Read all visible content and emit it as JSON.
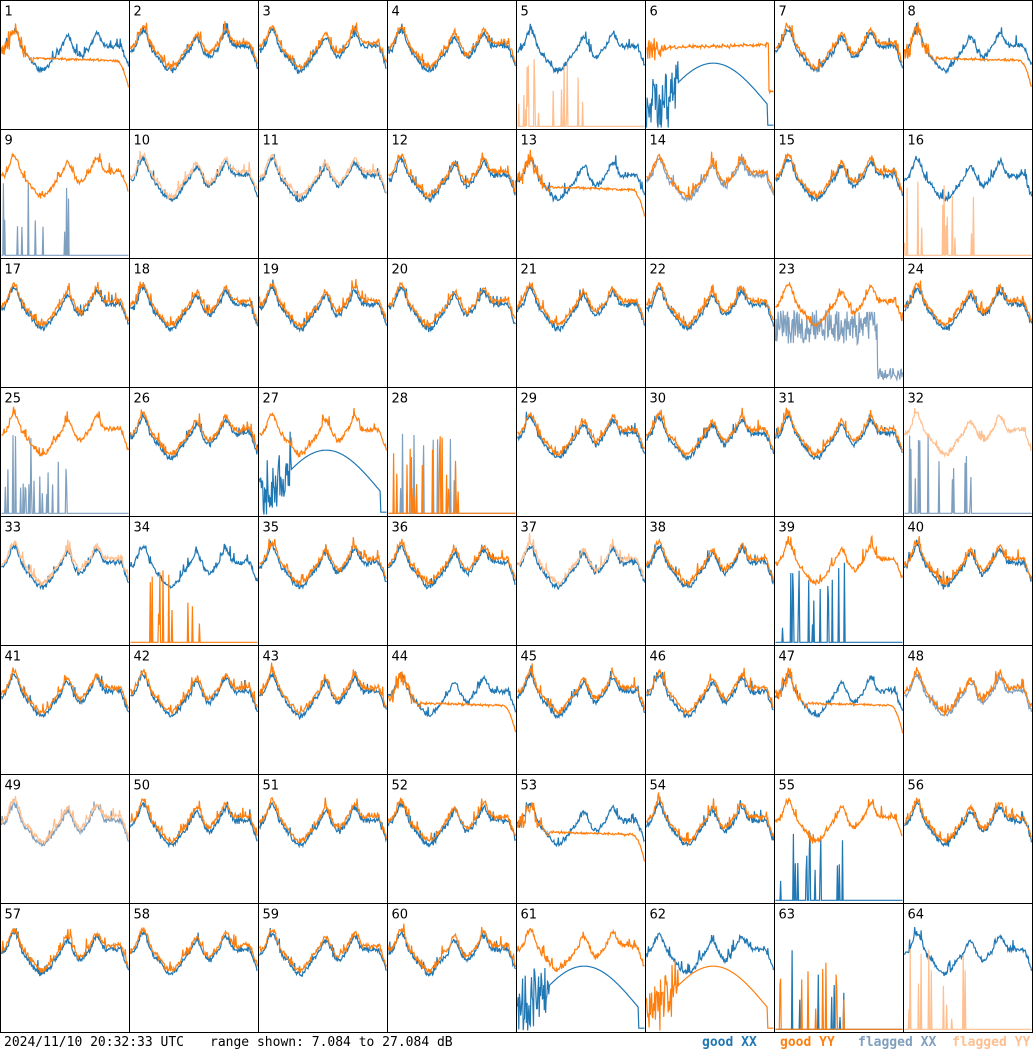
{
  "footer": {
    "timestamp": "2024/11/10 20:32:33 UTC",
    "range": "range shown: 7.084 to 27.084 dB"
  },
  "legend": [
    {
      "id": "good_xx",
      "label": "good XX",
      "color": "#1f77b4"
    },
    {
      "id": "good_yy",
      "label": "good YY",
      "color": "#ff7f0e"
    },
    {
      "id": "flagged_xx",
      "label": "flagged XX",
      "color": "#7f9fbf"
    },
    {
      "id": "flagged_yy",
      "label": "flagged YY",
      "color": "#ffbf8f"
    }
  ],
  "chart_data": {
    "type": "line",
    "layout": "8x8 grid of small multiples",
    "ylim": [
      7.084,
      27.084
    ],
    "yunit": "dB",
    "panels": [
      {
        "n": 1,
        "xx": "good",
        "yy": "good",
        "xx_shape": "normal",
        "yy_shape": "droop"
      },
      {
        "n": 2,
        "xx": "good",
        "yy": "good",
        "xx_shape": "normal",
        "yy_shape": "normal"
      },
      {
        "n": 3,
        "xx": "good",
        "yy": "good",
        "xx_shape": "normal",
        "yy_shape": "normal"
      },
      {
        "n": 4,
        "xx": "good",
        "yy": "good",
        "xx_shape": "normal",
        "yy_shape": "normal"
      },
      {
        "n": 5,
        "xx": "good",
        "yy": "flagged",
        "xx_shape": "normal",
        "yy_shape": "spikes"
      },
      {
        "n": 6,
        "xx": "good",
        "yy": "good",
        "xx_shape": "dome",
        "yy_shape": "flat_high"
      },
      {
        "n": 7,
        "xx": "good",
        "yy": "good",
        "xx_shape": "normal",
        "yy_shape": "normal"
      },
      {
        "n": 8,
        "xx": "good",
        "yy": "good",
        "xx_shape": "normal",
        "yy_shape": "droop"
      },
      {
        "n": 9,
        "xx": "flagged",
        "yy": "good",
        "xx_shape": "spikes",
        "yy_shape": "normal"
      },
      {
        "n": 10,
        "xx": "good",
        "yy": "flagged",
        "xx_shape": "normal",
        "yy_shape": "normal"
      },
      {
        "n": 11,
        "xx": "good",
        "yy": "flagged",
        "xx_shape": "normal",
        "yy_shape": "normal"
      },
      {
        "n": 12,
        "xx": "good",
        "yy": "good",
        "xx_shape": "normal",
        "yy_shape": "normal"
      },
      {
        "n": 13,
        "xx": "good",
        "yy": "good",
        "xx_shape": "normal",
        "yy_shape": "droop"
      },
      {
        "n": 14,
        "xx": "flagged",
        "yy": "good",
        "xx_shape": "normal",
        "yy_shape": "normal"
      },
      {
        "n": 15,
        "xx": "good",
        "yy": "good",
        "xx_shape": "normal",
        "yy_shape": "normal"
      },
      {
        "n": 16,
        "xx": "good",
        "yy": "flagged",
        "xx_shape": "normal",
        "yy_shape": "spikes"
      },
      {
        "n": 17,
        "xx": "good",
        "yy": "good",
        "xx_shape": "normal",
        "yy_shape": "normal"
      },
      {
        "n": 18,
        "xx": "good",
        "yy": "good",
        "xx_shape": "normal",
        "yy_shape": "normal"
      },
      {
        "n": 19,
        "xx": "good",
        "yy": "good",
        "xx_shape": "normal",
        "yy_shape": "normal"
      },
      {
        "n": 20,
        "xx": "good",
        "yy": "good",
        "xx_shape": "normal",
        "yy_shape": "normal"
      },
      {
        "n": 21,
        "xx": "good",
        "yy": "good",
        "xx_shape": "normal",
        "yy_shape": "normal"
      },
      {
        "n": 22,
        "xx": "good",
        "yy": "good",
        "xx_shape": "normal",
        "yy_shape": "normal"
      },
      {
        "n": 23,
        "xx": "flagged",
        "yy": "good",
        "xx_shape": "noisy_low",
        "yy_shape": "normal"
      },
      {
        "n": 24,
        "xx": "good",
        "yy": "good",
        "xx_shape": "normal",
        "yy_shape": "normal"
      },
      {
        "n": 25,
        "xx": "flagged",
        "yy": "good",
        "xx_shape": "spikes",
        "yy_shape": "normal"
      },
      {
        "n": 26,
        "xx": "good",
        "yy": "good",
        "xx_shape": "normal",
        "yy_shape": "normal"
      },
      {
        "n": 27,
        "xx": "good",
        "yy": "good",
        "xx_shape": "dome",
        "yy_shape": "normal"
      },
      {
        "n": 28,
        "xx": "flagged",
        "yy": "good",
        "xx_shape": "spikes",
        "yy_shape": "spikes"
      },
      {
        "n": 29,
        "xx": "good",
        "yy": "good",
        "xx_shape": "normal",
        "yy_shape": "normal"
      },
      {
        "n": 30,
        "xx": "good",
        "yy": "good",
        "xx_shape": "normal",
        "yy_shape": "normal"
      },
      {
        "n": 31,
        "xx": "good",
        "yy": "good",
        "xx_shape": "normal",
        "yy_shape": "normal"
      },
      {
        "n": 32,
        "xx": "flagged",
        "yy": "flagged",
        "xx_shape": "spikes",
        "yy_shape": "normal"
      },
      {
        "n": 33,
        "xx": "good",
        "yy": "flagged",
        "xx_shape": "normal",
        "yy_shape": "normal"
      },
      {
        "n": 34,
        "xx": "good",
        "yy": "good",
        "xx_shape": "normal",
        "yy_shape": "spikes"
      },
      {
        "n": 35,
        "xx": "good",
        "yy": "good",
        "xx_shape": "normal",
        "yy_shape": "normal"
      },
      {
        "n": 36,
        "xx": "good",
        "yy": "good",
        "xx_shape": "normal",
        "yy_shape": "normal"
      },
      {
        "n": 37,
        "xx": "good",
        "yy": "flagged",
        "xx_shape": "normal",
        "yy_shape": "normal"
      },
      {
        "n": 38,
        "xx": "good",
        "yy": "good",
        "xx_shape": "normal",
        "yy_shape": "normal"
      },
      {
        "n": 39,
        "xx": "good",
        "yy": "good",
        "xx_shape": "spikes",
        "yy_shape": "normal"
      },
      {
        "n": 40,
        "xx": "good",
        "yy": "good",
        "xx_shape": "normal",
        "yy_shape": "normal"
      },
      {
        "n": 41,
        "xx": "good",
        "yy": "good",
        "xx_shape": "normal",
        "yy_shape": "normal"
      },
      {
        "n": 42,
        "xx": "good",
        "yy": "good",
        "xx_shape": "normal",
        "yy_shape": "normal"
      },
      {
        "n": 43,
        "xx": "good",
        "yy": "good",
        "xx_shape": "normal",
        "yy_shape": "normal"
      },
      {
        "n": 44,
        "xx": "good",
        "yy": "good",
        "xx_shape": "normal",
        "yy_shape": "droop"
      },
      {
        "n": 45,
        "xx": "good",
        "yy": "good",
        "xx_shape": "normal",
        "yy_shape": "normal"
      },
      {
        "n": 46,
        "xx": "good",
        "yy": "good",
        "xx_shape": "normal",
        "yy_shape": "normal"
      },
      {
        "n": 47,
        "xx": "good",
        "yy": "good",
        "xx_shape": "normal",
        "yy_shape": "droop"
      },
      {
        "n": 48,
        "xx": "flagged",
        "yy": "good",
        "xx_shape": "normal",
        "yy_shape": "normal"
      },
      {
        "n": 49,
        "xx": "flagged",
        "yy": "flagged",
        "xx_shape": "normal",
        "yy_shape": "normal"
      },
      {
        "n": 50,
        "xx": "good",
        "yy": "good",
        "xx_shape": "normal",
        "yy_shape": "normal"
      },
      {
        "n": 51,
        "xx": "good",
        "yy": "good",
        "xx_shape": "normal",
        "yy_shape": "normal"
      },
      {
        "n": 52,
        "xx": "good",
        "yy": "good",
        "xx_shape": "normal",
        "yy_shape": "normal"
      },
      {
        "n": 53,
        "xx": "good",
        "yy": "good",
        "xx_shape": "normal",
        "yy_shape": "droop"
      },
      {
        "n": 54,
        "xx": "good",
        "yy": "good",
        "xx_shape": "normal",
        "yy_shape": "normal"
      },
      {
        "n": 55,
        "xx": "good",
        "yy": "good",
        "xx_shape": "spikes",
        "yy_shape": "normal"
      },
      {
        "n": 56,
        "xx": "good",
        "yy": "good",
        "xx_shape": "normal",
        "yy_shape": "normal"
      },
      {
        "n": 57,
        "xx": "good",
        "yy": "good",
        "xx_shape": "normal",
        "yy_shape": "normal"
      },
      {
        "n": 58,
        "xx": "good",
        "yy": "good",
        "xx_shape": "normal",
        "yy_shape": "normal"
      },
      {
        "n": 59,
        "xx": "good",
        "yy": "good",
        "xx_shape": "normal",
        "yy_shape": "normal"
      },
      {
        "n": 60,
        "xx": "good",
        "yy": "good",
        "xx_shape": "normal",
        "yy_shape": "normal"
      },
      {
        "n": 61,
        "xx": "good",
        "yy": "good",
        "xx_shape": "dome",
        "yy_shape": "normal"
      },
      {
        "n": 62,
        "xx": "good",
        "yy": "good",
        "xx_shape": "normal",
        "yy_shape": "dome"
      },
      {
        "n": 63,
        "xx": "good",
        "yy": "good",
        "xx_shape": "spikes",
        "yy_shape": "spikes"
      },
      {
        "n": 64,
        "xx": "good",
        "yy": "flagged",
        "xx_shape": "normal",
        "yy_shape": "spikes"
      }
    ]
  }
}
